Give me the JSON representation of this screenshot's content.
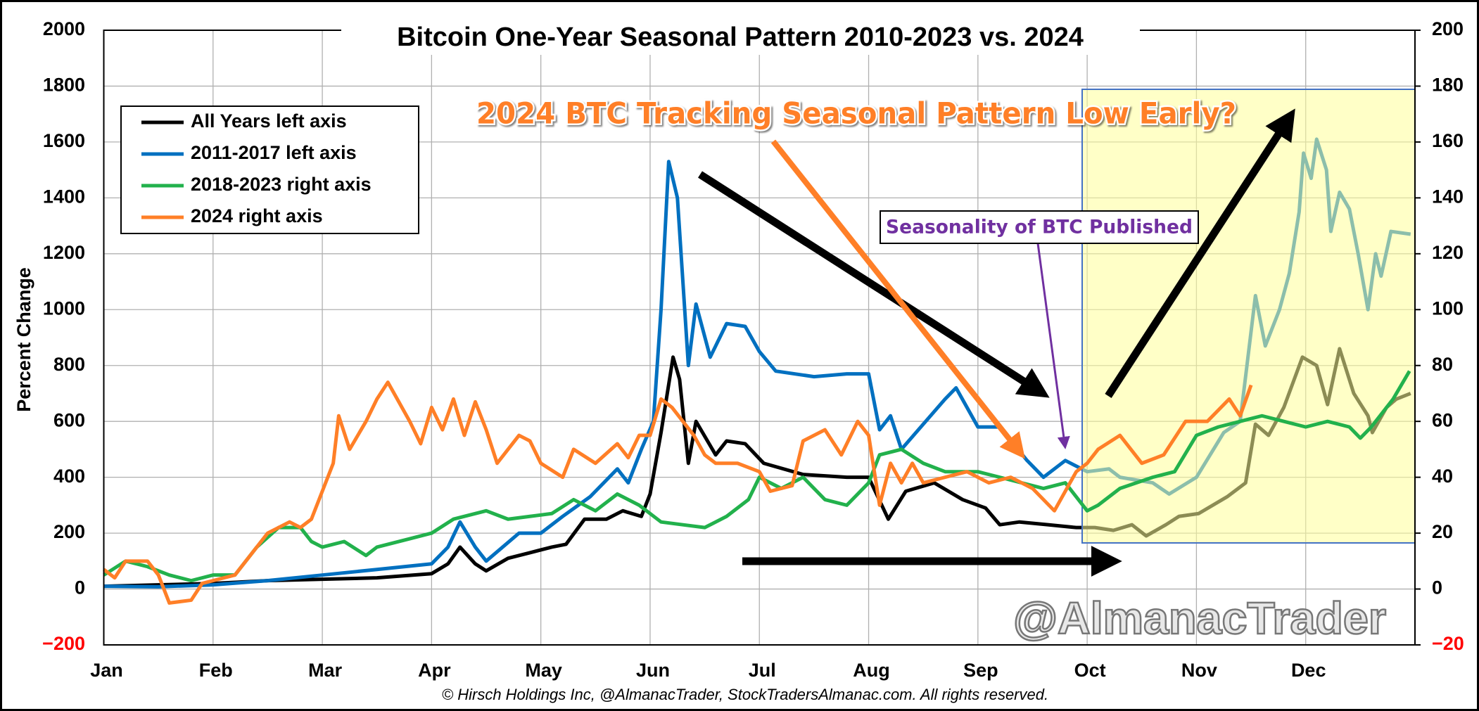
{
  "chart_data": {
    "type": "line",
    "title": "Bitcoin One-Year Seasonal Pattern 2010-2023 vs. 2024",
    "y_label": "Percent Change",
    "footer": "© Hirsch Holdings Inc, @AlmanacTrader, StockTradersAlmanac.com. All rights reserved.",
    "annotations": [
      "2024 BTC Tracking Seasonal Pattern Low Early?",
      "Seasonality of BTC Published",
      "@AlmanacTrader"
    ],
    "xlim": [
      0,
      12
    ],
    "xticks": [
      {
        "value": 0,
        "label": "Jan"
      },
      {
        "value": 1,
        "label": "Feb"
      },
      {
        "value": 2,
        "label": "Mar"
      },
      {
        "value": 3,
        "label": "Apr"
      },
      {
        "value": 4,
        "label": "May"
      },
      {
        "value": 5,
        "label": "Jun"
      },
      {
        "value": 6,
        "label": "Jul"
      },
      {
        "value": 7,
        "label": "Aug"
      },
      {
        "value": 8,
        "label": "Sep"
      },
      {
        "value": 9,
        "label": "Oct"
      },
      {
        "value": 10,
        "label": "Nov"
      },
      {
        "value": 11,
        "label": "Dec"
      }
    ],
    "ylim": [
      -200,
      2000
    ],
    "yticks": [
      {
        "value": -200,
        "label": "−200"
      },
      0,
      200,
      400,
      600,
      800,
      1000,
      1200,
      1400,
      1600,
      1800,
      2000
    ],
    "y2lim": [
      -20,
      200
    ],
    "y2ticks": [
      {
        "value": -20,
        "label": "−20"
      },
      0,
      20,
      40,
      60,
      80,
      100,
      120,
      140,
      160,
      180,
      200
    ],
    "negative_tick_color": "#ff0000",
    "grid": true,
    "legend": "upper left",
    "series": [
      {
        "name": "All Years left axis",
        "color": "#000000",
        "x": [
          0,
          0.5,
          1,
          1.5,
          2,
          2.5,
          3,
          3.15,
          3.26,
          3.4,
          3.5,
          3.7,
          3.9,
          4.1,
          4.23,
          4.4,
          4.6,
          4.75,
          4.92,
          5.0,
          5.1,
          5.21,
          5.27,
          5.35,
          5.42,
          5.6,
          5.7,
          5.87,
          6.04,
          6.4,
          6.8,
          7.0,
          7.12,
          7.18,
          7.34,
          7.6,
          7.86,
          8.07,
          8.2,
          8.38,
          8.64,
          8.9,
          9.07,
          9.24,
          9.41,
          9.54,
          9.72,
          9.84,
          10.02,
          10.28,
          10.45,
          10.54,
          10.66,
          10.8,
          10.97,
          11.1,
          11.2,
          11.31,
          11.44,
          11.57,
          11.61,
          11.74,
          11.83,
          11.96
        ],
        "values": [
          10,
          15,
          20,
          30,
          35,
          40,
          55,
          90,
          150,
          90,
          65,
          110,
          130,
          150,
          160,
          250,
          250,
          280,
          260,
          340,
          560,
          830,
          750,
          450,
          600,
          480,
          530,
          520,
          450,
          410,
          400,
          400,
          300,
          250,
          350,
          380,
          320,
          290,
          230,
          240,
          230,
          220,
          220,
          210,
          230,
          190,
          230,
          260,
          270,
          330,
          380,
          590,
          550,
          650,
          830,
          800,
          660,
          860,
          700,
          620,
          560,
          650,
          680,
          700
        ]
      },
      {
        "name": "2011-2017 left axis",
        "color": "#0070c0",
        "x": [
          0,
          0.5,
          1,
          1.5,
          2,
          2.5,
          3,
          3.15,
          3.26,
          3.4,
          3.5,
          3.8,
          4.0,
          4.2,
          4.45,
          4.7,
          4.8,
          4.92,
          5.03,
          5.1,
          5.17,
          5.25,
          5.35,
          5.42,
          5.55,
          5.7,
          5.87,
          6.0,
          6.15,
          6.5,
          6.8,
          7.0,
          7.1,
          7.2,
          7.3,
          7.5,
          7.7,
          7.8,
          8.0,
          8.2,
          8.45,
          8.6,
          8.8,
          9.0,
          9.2,
          9.3,
          9.6,
          9.75,
          10.0,
          10.25,
          10.4,
          10.54,
          10.63,
          10.76,
          10.85,
          10.94,
          10.98,
          11.05,
          11.1,
          11.19,
          11.23,
          11.31,
          11.4,
          11.48,
          11.57,
          11.64,
          11.69,
          11.78,
          11.96
        ],
        "values": [
          10,
          8,
          15,
          30,
          50,
          70,
          90,
          150,
          240,
          150,
          100,
          200,
          200,
          260,
          330,
          430,
          380,
          500,
          600,
          1000,
          1530,
          1400,
          800,
          1020,
          830,
          950,
          940,
          850,
          780,
          760,
          770,
          770,
          570,
          620,
          500,
          590,
          680,
          720,
          580,
          580,
          460,
          400,
          460,
          420,
          430,
          400,
          380,
          340,
          400,
          560,
          600,
          1050,
          870,
          1000,
          1130,
          1350,
          1560,
          1470,
          1610,
          1500,
          1280,
          1420,
          1360,
          1200,
          1000,
          1200,
          1120,
          1280,
          1270
        ]
      },
      {
        "name": "2018-2023 right axis",
        "color": "#22b14c",
        "axis": "y2",
        "x": [
          0,
          0.2,
          0.4,
          0.6,
          0.8,
          1.0,
          1.2,
          1.4,
          1.6,
          1.8,
          1.9,
          2.0,
          2.2,
          2.4,
          2.5,
          2.8,
          3.0,
          3.2,
          3.5,
          3.7,
          3.9,
          4.1,
          4.3,
          4.5,
          4.7,
          4.9,
          5.1,
          5.3,
          5.5,
          5.7,
          5.9,
          6.0,
          6.2,
          6.4,
          6.6,
          6.8,
          7.0,
          7.1,
          7.3,
          7.5,
          7.7,
          8.0,
          8.2,
          8.4,
          8.6,
          8.8,
          9.0,
          9.1,
          9.3,
          9.6,
          9.8,
          10.0,
          10.2,
          10.4,
          10.6,
          10.8,
          11.0,
          11.2,
          11.4,
          11.5,
          11.6,
          11.8,
          11.95
        ],
        "values": [
          5,
          10,
          8,
          5,
          3,
          5,
          5,
          15,
          22,
          22,
          17,
          15,
          17,
          12,
          15,
          18,
          20,
          25,
          28,
          25,
          26,
          27,
          32,
          28,
          34,
          30,
          24,
          23,
          22,
          26,
          32,
          40,
          36,
          40,
          32,
          30,
          38,
          48,
          50,
          45,
          42,
          42,
          40,
          38,
          36,
          38,
          28,
          30,
          36,
          40,
          42,
          55,
          58,
          60,
          62,
          60,
          58,
          60,
          58,
          54,
          58,
          68,
          78
        ]
      },
      {
        "name": "2024 right axis",
        "color": "#ff7f27",
        "axis": "y2",
        "x": [
          0,
          0.1,
          0.2,
          0.4,
          0.5,
          0.6,
          0.8,
          0.9,
          1.0,
          1.2,
          1.4,
          1.5,
          1.7,
          1.8,
          1.9,
          2.0,
          2.1,
          2.15,
          2.25,
          2.4,
          2.5,
          2.6,
          2.7,
          2.8,
          2.9,
          3.0,
          3.1,
          3.2,
          3.3,
          3.4,
          3.5,
          3.6,
          3.8,
          3.9,
          4.0,
          4.2,
          4.3,
          4.5,
          4.7,
          4.8,
          4.9,
          5.0,
          5.1,
          5.2,
          5.3,
          5.4,
          5.5,
          5.6,
          5.8,
          6.0,
          6.1,
          6.3,
          6.4,
          6.6,
          6.75,
          6.9,
          7.0,
          7.1,
          7.2,
          7.3,
          7.4,
          7.5,
          7.7,
          7.9,
          8.1,
          8.3,
          8.5,
          8.7,
          8.9,
          9.0,
          9.1,
          9.3,
          9.4,
          9.5,
          9.7,
          9.9,
          10.1,
          10.3,
          10.4,
          10.5
        ],
        "values": [
          7,
          4,
          10,
          10,
          5,
          -5,
          -4,
          2,
          3,
          5,
          15,
          20,
          24,
          22,
          25,
          35,
          45,
          62,
          50,
          60,
          68,
          74,
          67,
          60,
          52,
          65,
          57,
          68,
          55,
          67,
          57,
          45,
          55,
          53,
          45,
          40,
          50,
          45,
          52,
          47,
          55,
          55,
          68,
          65,
          60,
          55,
          48,
          45,
          45,
          42,
          35,
          37,
          53,
          57,
          48,
          60,
          55,
          30,
          45,
          38,
          45,
          38,
          40,
          42,
          38,
          40,
          36,
          28,
          42,
          45,
          50,
          55,
          50,
          45,
          48,
          60,
          60,
          68,
          62,
          73
        ]
      }
    ]
  }
}
